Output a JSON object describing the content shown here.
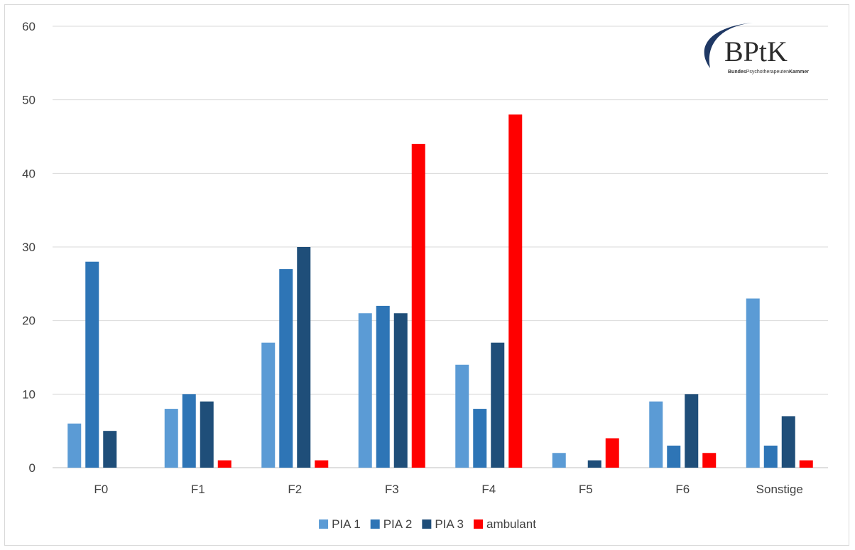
{
  "logo": {
    "text": "BPtK",
    "subtitle_parts": [
      "Bundes",
      "Psychotherapeuten",
      "Kammer"
    ]
  },
  "chart_data": {
    "type": "bar",
    "categories": [
      "F0",
      "F1",
      "F2",
      "F3",
      "F4",
      "F5",
      "F6",
      "Sonstige"
    ],
    "series": [
      {
        "name": "PIA 1",
        "color": "#5b9bd5",
        "values": [
          6,
          8,
          17,
          21,
          14,
          2,
          9,
          23
        ]
      },
      {
        "name": "PIA 2",
        "color": "#2e75b6",
        "values": [
          28,
          10,
          27,
          22,
          8,
          0,
          3,
          3
        ]
      },
      {
        "name": "PIA 3",
        "color": "#1f4e79",
        "values": [
          5,
          9,
          30,
          21,
          17,
          1,
          10,
          7
        ]
      },
      {
        "name": "ambulant",
        "color": "#ff0000",
        "values": [
          0,
          1,
          1,
          44,
          48,
          4,
          2,
          1
        ]
      }
    ],
    "yticks": [
      0,
      10,
      20,
      30,
      40,
      50,
      60
    ],
    "ylim": [
      0,
      60
    ],
    "grid": true,
    "legend_position": "bottom"
  }
}
